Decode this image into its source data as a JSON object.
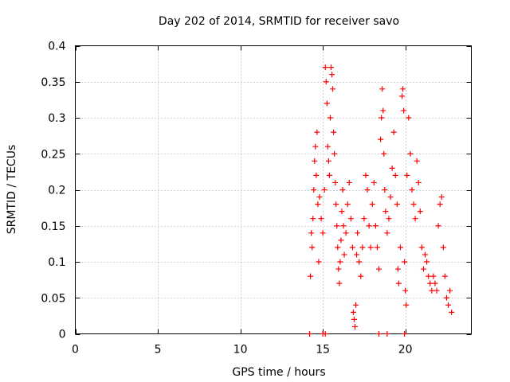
{
  "chart_data": {
    "type": "scatter",
    "title": "Day 202 of 2014, SRMTID for receiver savo",
    "xlabel": "GPS time / hours",
    "ylabel": "SRMTID / TECUs",
    "xlim": [
      0,
      24
    ],
    "ylim": [
      0,
      0.4
    ],
    "xticks": [
      0,
      5,
      10,
      15,
      20
    ],
    "xtick_labels": [
      "0",
      "5",
      "10",
      "15",
      "20"
    ],
    "yticks": [
      0,
      0.05,
      0.1,
      0.15,
      0.2,
      0.25,
      0.3,
      0.35,
      0.4
    ],
    "ytick_labels": [
      "0",
      "0.05",
      "0.1",
      "0.15",
      "0.2",
      "0.25",
      "0.3",
      "0.35",
      "0.4"
    ],
    "grid": true,
    "marker": "+",
    "color": "#ff0000",
    "series": [
      {
        "name": "SRMTID",
        "points": [
          [
            14.2,
            0.0
          ],
          [
            15.0,
            0.0
          ],
          [
            15.15,
            0.0
          ],
          [
            18.4,
            0.0
          ],
          [
            18.9,
            0.0
          ],
          [
            19.95,
            0.0
          ],
          [
            14.25,
            0.08
          ],
          [
            14.3,
            0.14
          ],
          [
            14.35,
            0.12
          ],
          [
            14.4,
            0.16
          ],
          [
            14.45,
            0.2
          ],
          [
            14.5,
            0.24
          ],
          [
            14.55,
            0.26
          ],
          [
            14.6,
            0.22
          ],
          [
            14.65,
            0.28
          ],
          [
            14.7,
            0.18
          ],
          [
            14.75,
            0.1
          ],
          [
            14.8,
            0.19
          ],
          [
            14.9,
            0.16
          ],
          [
            15.0,
            0.14
          ],
          [
            15.1,
            0.2
          ],
          [
            15.15,
            0.37
          ],
          [
            15.2,
            0.35
          ],
          [
            15.25,
            0.32
          ],
          [
            15.3,
            0.26
          ],
          [
            15.35,
            0.24
          ],
          [
            15.4,
            0.22
          ],
          [
            15.45,
            0.3
          ],
          [
            15.5,
            0.37
          ],
          [
            15.55,
            0.36
          ],
          [
            15.6,
            0.34
          ],
          [
            15.65,
            0.28
          ],
          [
            15.7,
            0.25
          ],
          [
            15.75,
            0.21
          ],
          [
            15.8,
            0.18
          ],
          [
            15.85,
            0.15
          ],
          [
            15.9,
            0.12
          ],
          [
            15.95,
            0.09
          ],
          [
            16.0,
            0.07
          ],
          [
            16.05,
            0.1
          ],
          [
            16.1,
            0.13
          ],
          [
            16.15,
            0.17
          ],
          [
            16.2,
            0.2
          ],
          [
            16.25,
            0.15
          ],
          [
            16.3,
            0.11
          ],
          [
            16.4,
            0.14
          ],
          [
            16.5,
            0.18
          ],
          [
            16.6,
            0.21
          ],
          [
            16.7,
            0.16
          ],
          [
            16.8,
            0.12
          ],
          [
            16.85,
            0.03
          ],
          [
            16.9,
            0.02
          ],
          [
            16.95,
            0.01
          ],
          [
            17.0,
            0.04
          ],
          [
            17.05,
            0.11
          ],
          [
            17.1,
            0.14
          ],
          [
            17.2,
            0.1
          ],
          [
            17.3,
            0.08
          ],
          [
            17.4,
            0.12
          ],
          [
            17.5,
            0.16
          ],
          [
            17.6,
            0.22
          ],
          [
            17.7,
            0.2
          ],
          [
            17.8,
            0.15
          ],
          [
            17.9,
            0.12
          ],
          [
            18.0,
            0.18
          ],
          [
            18.1,
            0.21
          ],
          [
            18.2,
            0.15
          ],
          [
            18.3,
            0.12
          ],
          [
            18.4,
            0.09
          ],
          [
            18.5,
            0.27
          ],
          [
            18.55,
            0.3
          ],
          [
            18.6,
            0.34
          ],
          [
            18.65,
            0.31
          ],
          [
            18.7,
            0.25
          ],
          [
            18.75,
            0.2
          ],
          [
            18.8,
            0.17
          ],
          [
            18.9,
            0.14
          ],
          [
            19.0,
            0.16
          ],
          [
            19.1,
            0.19
          ],
          [
            19.2,
            0.23
          ],
          [
            19.3,
            0.28
          ],
          [
            19.4,
            0.22
          ],
          [
            19.5,
            0.18
          ],
          [
            19.55,
            0.09
          ],
          [
            19.6,
            0.07
          ],
          [
            19.7,
            0.12
          ],
          [
            19.8,
            0.33
          ],
          [
            19.85,
            0.34
          ],
          [
            19.9,
            0.31
          ],
          [
            19.95,
            0.1
          ],
          [
            20.0,
            0.06
          ],
          [
            20.05,
            0.04
          ],
          [
            20.1,
            0.22
          ],
          [
            20.2,
            0.3
          ],
          [
            20.3,
            0.25
          ],
          [
            20.4,
            0.2
          ],
          [
            20.5,
            0.18
          ],
          [
            20.6,
            0.16
          ],
          [
            20.7,
            0.24
          ],
          [
            20.8,
            0.21
          ],
          [
            20.9,
            0.17
          ],
          [
            21.0,
            0.12
          ],
          [
            21.1,
            0.09
          ],
          [
            21.2,
            0.11
          ],
          [
            21.3,
            0.1
          ],
          [
            21.4,
            0.08
          ],
          [
            21.5,
            0.07
          ],
          [
            21.6,
            0.06
          ],
          [
            21.7,
            0.08
          ],
          [
            21.8,
            0.07
          ],
          [
            21.9,
            0.06
          ],
          [
            22.0,
            0.15
          ],
          [
            22.1,
            0.18
          ],
          [
            22.2,
            0.19
          ],
          [
            22.3,
            0.12
          ],
          [
            22.4,
            0.08
          ],
          [
            22.5,
            0.05
          ],
          [
            22.6,
            0.04
          ],
          [
            22.7,
            0.06
          ],
          [
            22.8,
            0.03
          ]
        ]
      }
    ]
  }
}
